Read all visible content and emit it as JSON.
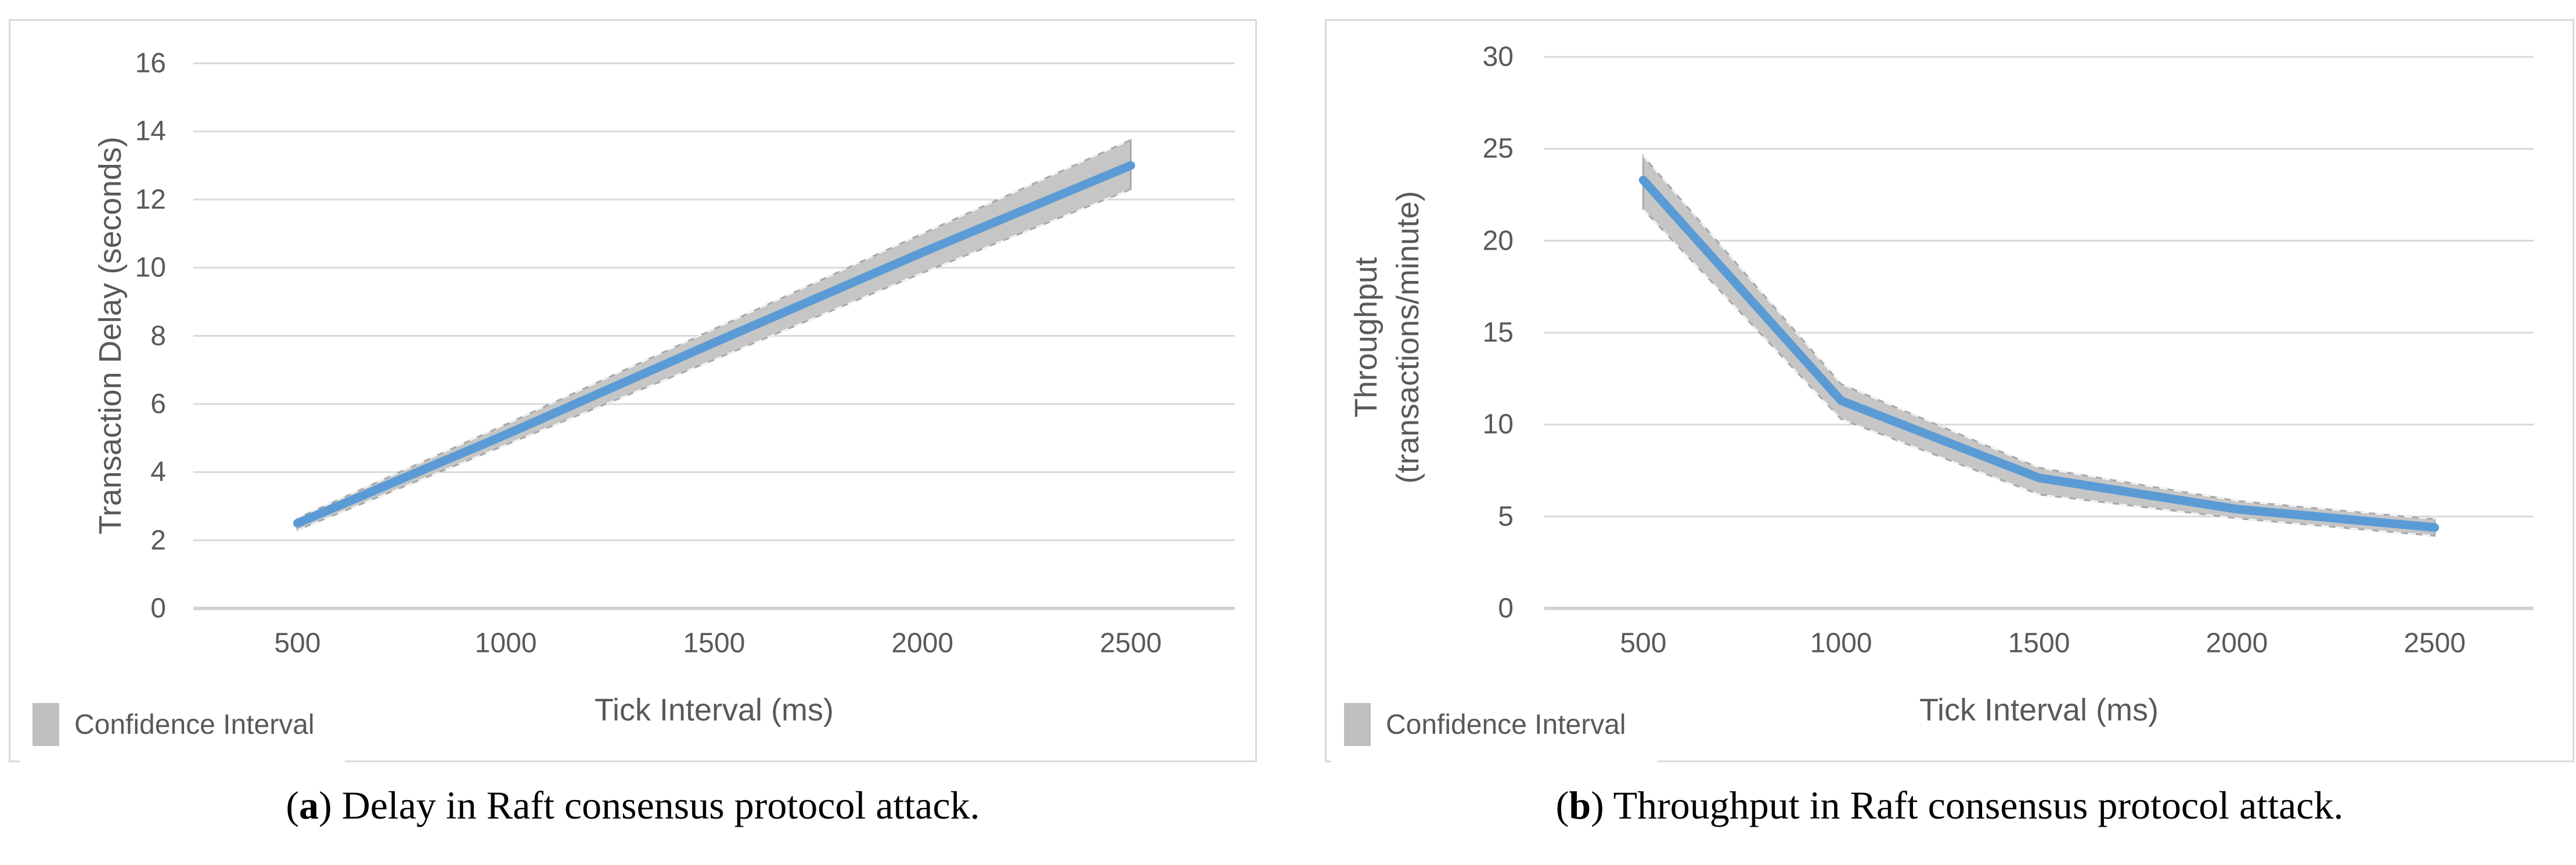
{
  "figure": {
    "panels": [
      {
        "caption": {
          "open": "(",
          "letter": "a",
          "close": ")",
          "text": "Delay in Raft consensus protocol attack."
        },
        "legend": {
          "label": "Confidence Interval"
        },
        "colors": {
          "line": "#5b9bd5",
          "band": "#c6c6c6",
          "band_edge": "#a8a8a8",
          "band_dash": "#ffffff",
          "grid": "#d9d9d9",
          "axis_line": "#d3d3d3",
          "text": "#595959",
          "swatch": "#bfbfbf",
          "border": "#d9d9d9"
        }
      },
      {
        "caption": {
          "open": "(",
          "letter": "b",
          "close": ")",
          "text": "Throughput in Raft consensus protocol attack."
        },
        "legend": {
          "label": "Confidence Interval"
        },
        "colors": {
          "line": "#5b9bd5",
          "band": "#c6c6c6",
          "band_edge": "#a8a8a8",
          "band_dash": "#ffffff",
          "grid": "#d9d9d9",
          "axis_line": "#d3d3d3",
          "text": "#595959",
          "swatch": "#bfbfbf",
          "border": "#d9d9d9"
        }
      }
    ]
  },
  "chart_data": [
    {
      "type": "line",
      "title": "",
      "x": [
        500,
        1000,
        1500,
        2000,
        2500
      ],
      "xticks": [
        "500",
        "1000",
        "1500",
        "2000",
        "2500"
      ],
      "xlabel": "Tick Interval (ms)",
      "ylabel": "Transaction Delay (seconds)",
      "ylabel_lines": [
        "Transaction Delay (seconds)"
      ],
      "ylim": [
        0,
        16
      ],
      "yticks": [
        "0",
        "2",
        "4",
        "6",
        "8",
        "10",
        "12",
        "14",
        "16"
      ],
      "grid": true,
      "legend_position": "bottom-left",
      "series": [
        {
          "name": "Transaction Delay",
          "values": [
            2.5,
            5.1,
            7.8,
            10.45,
            13.0
          ]
        }
      ],
      "confidence_interval": {
        "upper": [
          2.65,
          5.4,
          8.2,
          11.0,
          13.75
        ],
        "lower": [
          2.3,
          4.8,
          7.3,
          9.85,
          12.3
        ]
      }
    },
    {
      "type": "line",
      "title": "",
      "x": [
        500,
        1000,
        1500,
        2000,
        2500
      ],
      "xticks": [
        "500",
        "1000",
        "1500",
        "2000",
        "2500"
      ],
      "xlabel": "Tick Interval (ms)",
      "ylabel": "Throughput (transactions/minute)",
      "ylabel_lines": [
        "Throughput",
        "(transactions/minute)"
      ],
      "ylim": [
        0,
        30
      ],
      "yticks": [
        "0",
        "5",
        "10",
        "15",
        "20",
        "25",
        "30"
      ],
      "grid": true,
      "legend_position": "bottom-left",
      "series": [
        {
          "name": "Throughput",
          "values": [
            23.3,
            11.3,
            7.1,
            5.4,
            4.4
          ]
        }
      ],
      "confidence_interval": {
        "upper": [
          24.6,
          12.2,
          7.65,
          5.85,
          4.85
        ],
        "lower": [
          21.7,
          10.3,
          6.2,
          4.9,
          3.95
        ]
      }
    }
  ]
}
